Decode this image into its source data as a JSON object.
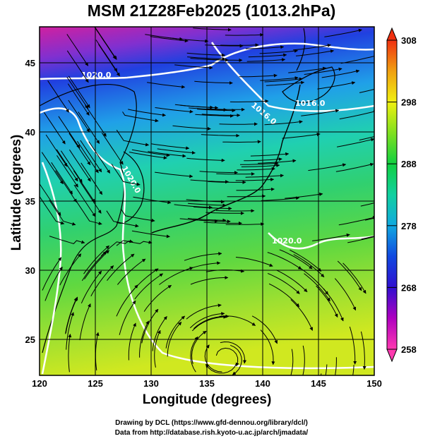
{
  "title": "MSM 21Z28Feb2025 (1013.2hPa)",
  "axes": {
    "xlabel": "Longitude (degrees)",
    "ylabel": "Latitude  (degrees)",
    "xlim": [
      120,
      150
    ],
    "ylim": [
      22.4,
      47.6
    ],
    "xticks": [
      "120",
      "125",
      "130",
      "135",
      "140",
      "145",
      "150"
    ],
    "yticks": [
      "25",
      "30",
      "35",
      "40",
      "45"
    ],
    "grid": true
  },
  "colorbar": {
    "min": 258,
    "max": 308,
    "ticks": [
      "258",
      "268",
      "278",
      "288",
      "298",
      "308"
    ],
    "colors": [
      "#ff3ab0",
      "#b000c0",
      "#3010d0",
      "#1048e0",
      "#10a8e0",
      "#10d0a0",
      "#10d040",
      "#80e020",
      "#f0f010",
      "#f0a010",
      "#f03010"
    ]
  },
  "contours": [
    {
      "label": "1020.0"
    },
    {
      "label": "1020.0"
    },
    {
      "label": "1016.0"
    },
    {
      "label": "1016.0"
    },
    {
      "label": "1020.0"
    }
  ],
  "credits": {
    "line1": "Drawing by DCL (https://www.gfd-dennou.org/library/dcl/)",
    "line2": "Data from http://database.rish.kyoto-u.ac.jp/arch/jmadata/"
  }
}
